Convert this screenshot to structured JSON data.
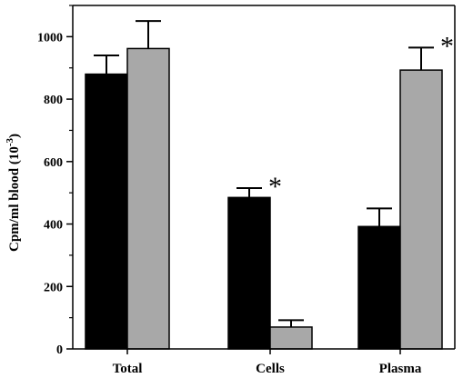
{
  "chart_data": {
    "type": "bar",
    "categories": [
      "Total",
      "Cells",
      "Plasma"
    ],
    "series": [
      {
        "values": [
          880,
          485,
          392
        ],
        "errors": [
          60,
          30,
          58
        ],
        "color": "#000000"
      },
      {
        "values": [
          962,
          70,
          893
        ],
        "errors": [
          88,
          22,
          72
        ],
        "color": "#a8a8a8"
      }
    ],
    "significance": [
      {
        "category": "Cells",
        "series": 0,
        "label": "*"
      },
      {
        "category": "Plasma",
        "series": 1,
        "label": "*"
      }
    ],
    "ylabel": "Cpm/ml blood (10",
    "ylabel_superscript": "-3",
    "ylabel_close": ")",
    "xlabel": "",
    "ylim": [
      0,
      1100
    ],
    "yticks": [
      0,
      200,
      400,
      600,
      800,
      1000
    ],
    "minor_ytick_step": 100,
    "grid": false,
    "legend": false
  }
}
